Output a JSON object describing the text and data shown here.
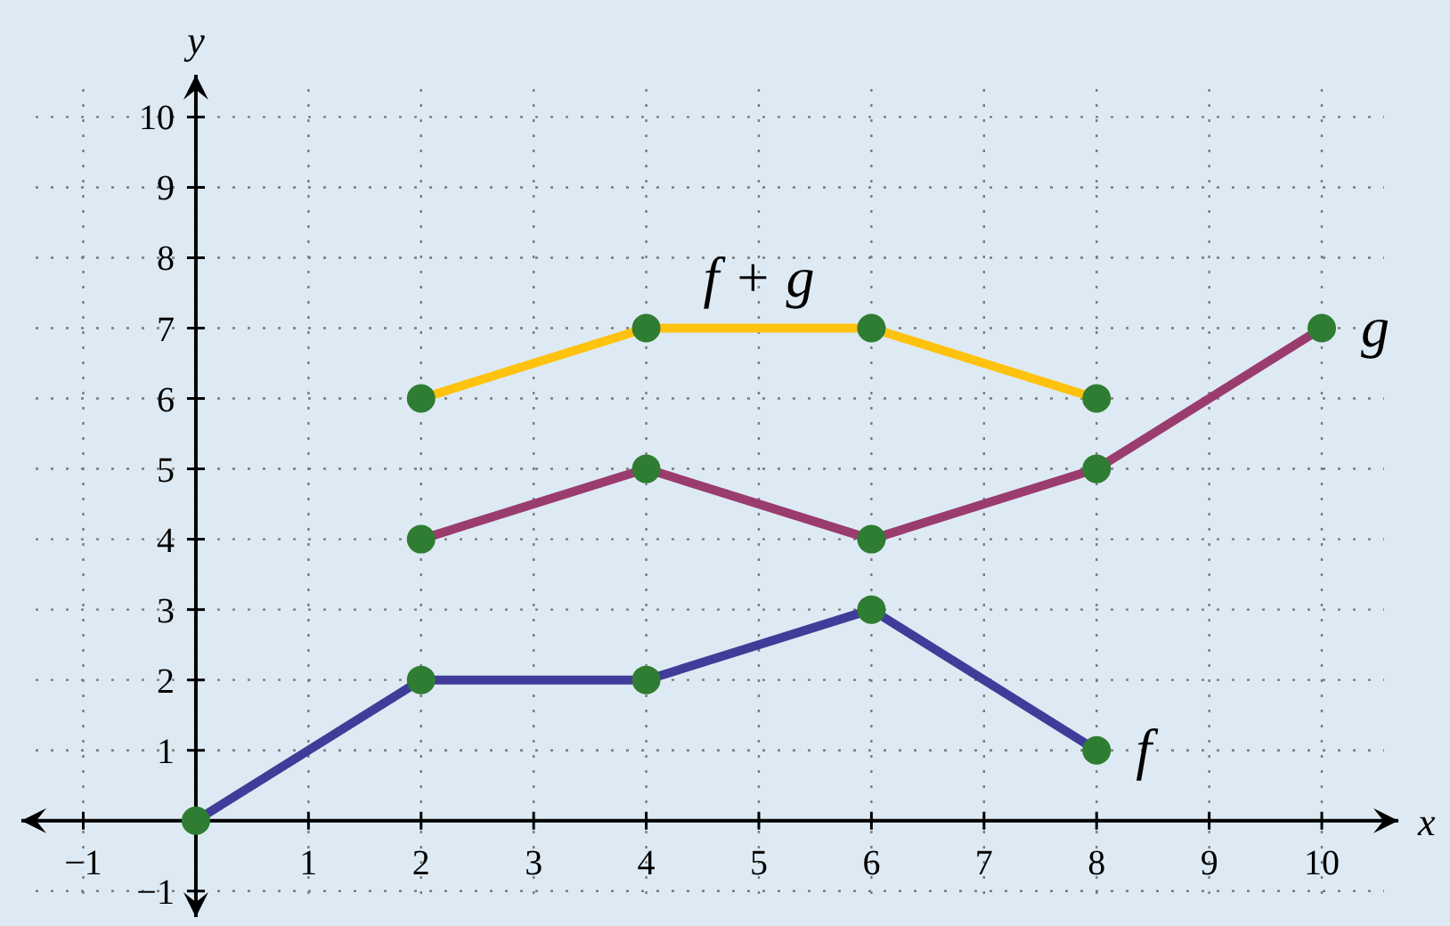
{
  "chart_data": {
    "type": "line",
    "xlabel": "x",
    "ylabel": "y",
    "xlim": [
      -1.55,
      10.68
    ],
    "ylim": [
      -1.37,
      10.6
    ],
    "xticks": [
      {
        "value": -1,
        "label": "−1"
      },
      {
        "value": 0,
        "label": null
      },
      1,
      2,
      3,
      4,
      5,
      6,
      7,
      8,
      9,
      10
    ],
    "yticks": [
      {
        "value": -1,
        "label": "−1"
      },
      {
        "value": 0,
        "label": null
      },
      1,
      2,
      3,
      4,
      5,
      6,
      7,
      8,
      9,
      10
    ],
    "grid": true,
    "marker": "circle",
    "line_style": "solid",
    "legend": false,
    "series": [
      {
        "name": "f",
        "color": "#3f3d99",
        "x": [
          0,
          2,
          4,
          6,
          8
        ],
        "values": [
          0,
          2,
          2,
          3,
          1
        ]
      },
      {
        "name": "g",
        "color": "#9b3c6e",
        "x": [
          2,
          4,
          6,
          8,
          10
        ],
        "values": [
          4,
          5,
          4,
          5,
          7
        ]
      },
      {
        "name": "f + g",
        "color": "#ffc20e",
        "x": [
          2,
          4,
          6,
          8
        ],
        "values": [
          6,
          7,
          7,
          6
        ]
      }
    ]
  }
}
